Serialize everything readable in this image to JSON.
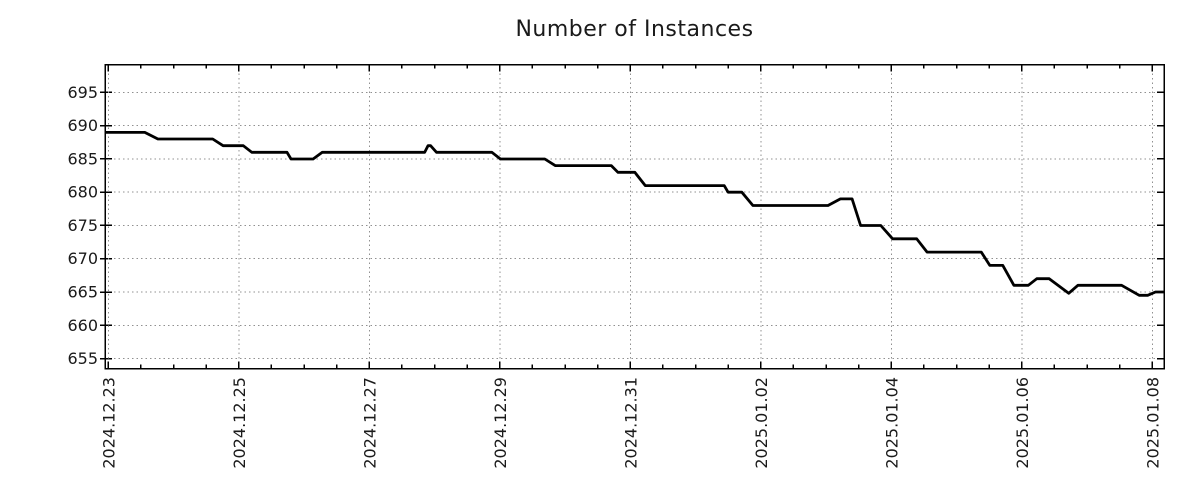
{
  "title": "Number of Instances",
  "colors": {
    "background": "#ffffff",
    "series_line": "#000000",
    "grid": "#909090",
    "border": "#000000",
    "text": "#1a1a1a"
  },
  "chart_data": {
    "type": "line",
    "title": "Number of Instances",
    "xlabel": "",
    "ylabel": "",
    "x_unit": "days since 2024-12-23 00:00",
    "xlim": [
      -0.05,
      16.18
    ],
    "ylim": [
      653.5,
      699.2
    ],
    "grid": true,
    "legend": "none",
    "x_tick_positions": [
      0,
      2,
      4,
      6,
      8,
      10,
      12,
      14,
      16
    ],
    "x_tick_labels": [
      "2024.12.23",
      "2024.12.25",
      "2024.12.27",
      "2024.12.29",
      "2024.12.31",
      "2025.01.02",
      "2025.01.04",
      "2025.01.06",
      "2025.01.08"
    ],
    "minor_x_tick_interval": 0.5,
    "y_tick_positions": [
      655,
      660,
      665,
      670,
      675,
      680,
      685,
      690,
      695
    ],
    "y_tick_labels": [
      "655",
      "660",
      "665",
      "670",
      "675",
      "680",
      "685",
      "690",
      "695"
    ],
    "series": [
      {
        "name": "instances",
        "points": [
          [
            -0.05,
            689
          ],
          [
            0.56,
            689
          ],
          [
            0.76,
            688
          ],
          [
            1.6,
            688
          ],
          [
            1.76,
            687
          ],
          [
            2.07,
            687
          ],
          [
            2.2,
            686
          ],
          [
            2.74,
            686
          ],
          [
            2.8,
            685
          ],
          [
            3.14,
            685
          ],
          [
            3.28,
            686
          ],
          [
            4.85,
            686
          ],
          [
            4.9,
            687
          ],
          [
            4.94,
            687
          ],
          [
            5.03,
            686
          ],
          [
            5.88,
            686
          ],
          [
            6.01,
            685
          ],
          [
            6.69,
            685
          ],
          [
            6.85,
            684
          ],
          [
            7.71,
            684
          ],
          [
            7.81,
            683
          ],
          [
            8.07,
            683
          ],
          [
            8.23,
            681
          ],
          [
            9.44,
            681
          ],
          [
            9.5,
            680
          ],
          [
            9.71,
            680
          ],
          [
            9.88,
            678
          ],
          [
            11.03,
            678
          ],
          [
            11.22,
            679
          ],
          [
            11.4,
            679
          ],
          [
            11.53,
            675
          ],
          [
            11.84,
            675
          ],
          [
            12.02,
            673
          ],
          [
            12.39,
            673
          ],
          [
            12.55,
            671
          ],
          [
            13.38,
            671
          ],
          [
            13.51,
            669
          ],
          [
            13.71,
            669
          ],
          [
            13.88,
            666
          ],
          [
            14.1,
            666
          ],
          [
            14.23,
            667
          ],
          [
            14.42,
            667
          ],
          [
            14.72,
            664.8
          ],
          [
            14.86,
            666
          ],
          [
            15.53,
            666
          ],
          [
            15.8,
            664.5
          ],
          [
            15.93,
            664.5
          ],
          [
            16.05,
            665
          ],
          [
            16.18,
            665
          ]
        ]
      }
    ]
  }
}
